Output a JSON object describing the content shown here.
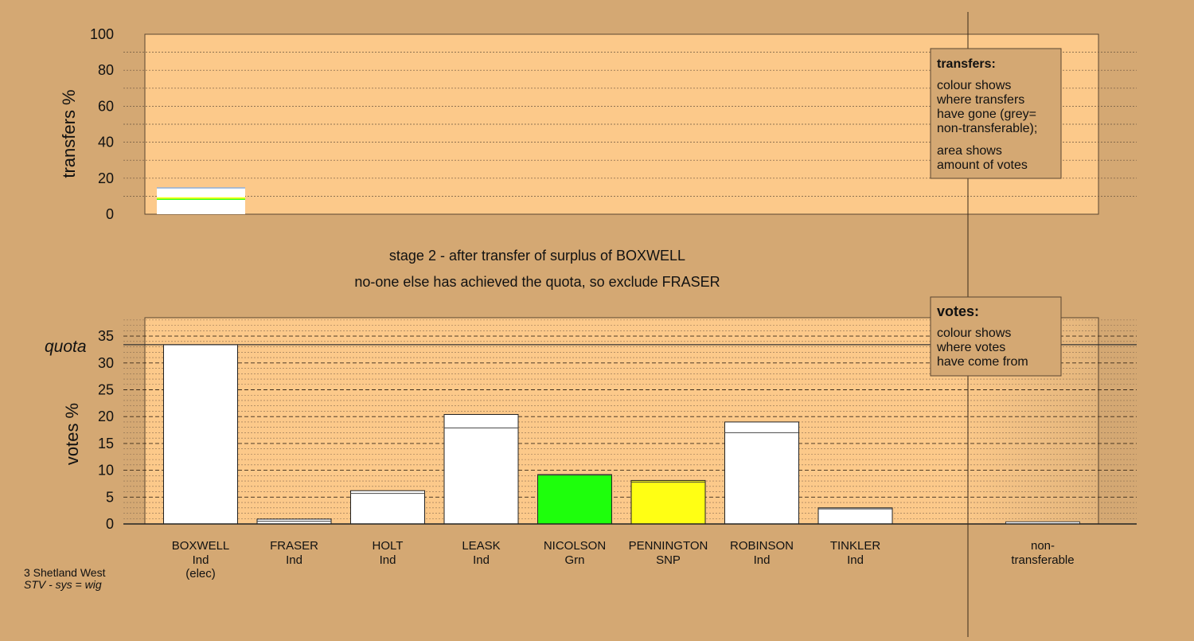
{
  "colors": {
    "background": "#d4a873",
    "plot_area": "#fcc98a",
    "nicolson": "#1eff0c",
    "pennington": "#ffff14",
    "other": "#ffffff"
  },
  "stage": {
    "line1": "stage 2 - after transfer of surplus of BOXWELL",
    "line2": "no-one else has achieved the quota, so exclude FRASER"
  },
  "footer": {
    "constituency": "3 Shetland West",
    "system": "STV - sys = wig"
  },
  "transfers_legend": {
    "title": "transfers:",
    "line1": "colour shows",
    "line2": "where transfers",
    "line3": "have gone (grey=",
    "line4": "non-transferable);",
    "line5": "area shows",
    "line6": "amount of votes"
  },
  "votes_legend": {
    "title": "votes:",
    "line1": "colour shows",
    "line2": "where votes",
    "line3": "have come from"
  },
  "chart_data": [
    {
      "type": "bar",
      "name_role": "transfers",
      "ylabel": "transfers %",
      "ylim": [
        0,
        100
      ],
      "yticks": [
        0,
        20,
        40,
        60,
        80,
        100
      ],
      "grid": true,
      "categories": [
        "BOXWELL"
      ],
      "segments": [
        {
          "party": "Grn",
          "color": "#1eff0c",
          "from": 8,
          "to": 8.6
        },
        {
          "party": "SNP",
          "color": "#ffff14",
          "from": 8.6,
          "to": 9.4
        },
        {
          "party": "Ind",
          "color": "#ffffff",
          "from": 0,
          "to": 8
        },
        {
          "party": "Ind",
          "color": "#ffffff",
          "from": 9.4,
          "to": 14.6
        }
      ],
      "total": 14.6
    },
    {
      "type": "bar",
      "name_role": "votes",
      "ylabel": "votes %",
      "ylim": [
        0,
        38
      ],
      "yticks": [
        0,
        5,
        10,
        15,
        20,
        25,
        30,
        35
      ],
      "grid": true,
      "quota_label": "quota",
      "quota": 33.4,
      "categories": [
        {
          "name": "BOXWELL",
          "party": "Ind",
          "note": "(elec)"
        },
        {
          "name": "FRASER",
          "party": "Ind",
          "note": ""
        },
        {
          "name": "HOLT",
          "party": "Ind",
          "note": ""
        },
        {
          "name": "LEASK",
          "party": "Ind",
          "note": ""
        },
        {
          "name": "NICOLSON",
          "party": "Grn",
          "note": ""
        },
        {
          "name": "PENNINGTON",
          "party": "SNP",
          "note": ""
        },
        {
          "name": "ROBINSON",
          "party": "Ind",
          "note": ""
        },
        {
          "name": "TINKLER",
          "party": "Ind",
          "note": ""
        }
      ],
      "first_prefs": [
        33.4,
        0.5,
        5.7,
        17.9,
        9.1,
        7.8,
        17.0,
        2.8
      ],
      "after_stage2": [
        33.4,
        0.9,
        6.2,
        20.4,
        9.2,
        8.1,
        19.0,
        3.0
      ],
      "bar_colors": [
        "#ffffff",
        "#ffffff",
        "#ffffff",
        "#ffffff",
        "#1eff0c",
        "#ffff14",
        "#ffffff",
        "#ffffff"
      ],
      "nontransferable": {
        "label1": "non-",
        "label2": "transferable",
        "value": 0.4
      }
    }
  ]
}
